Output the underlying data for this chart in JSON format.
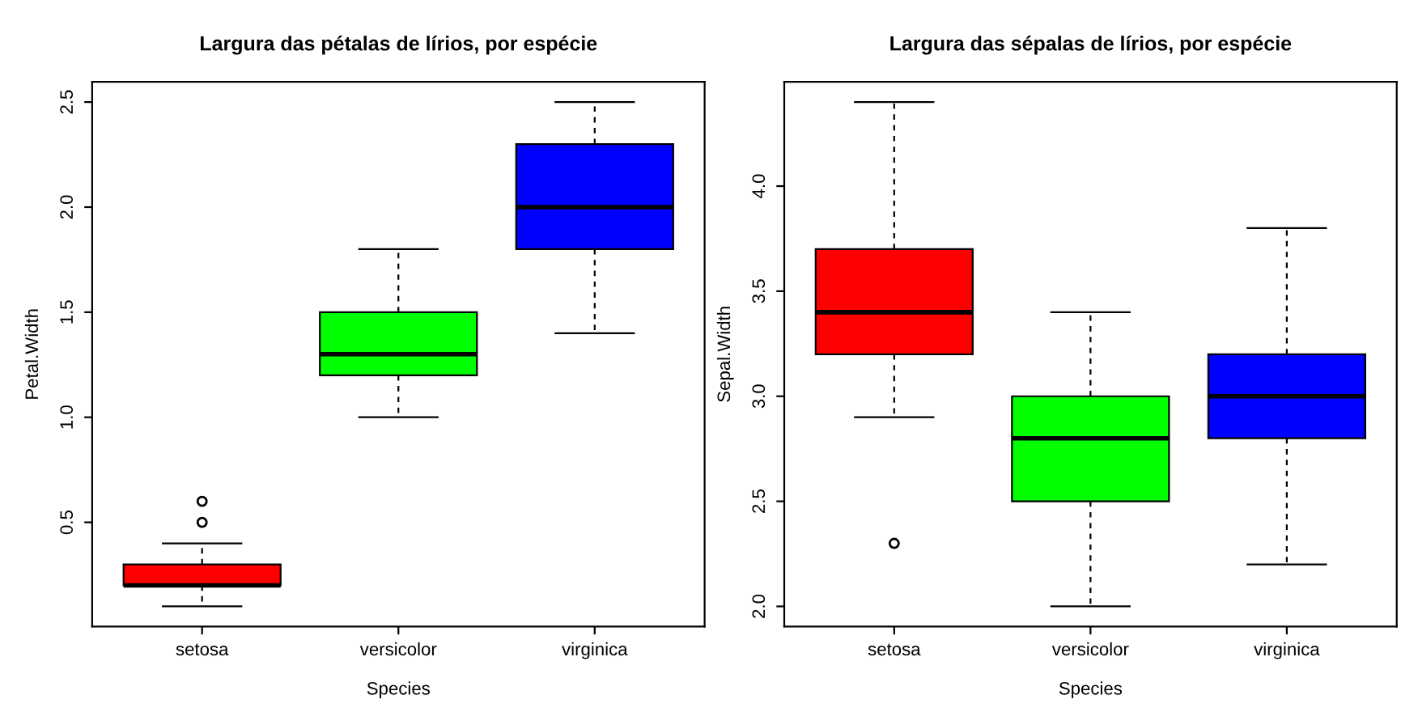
{
  "chart_data": [
    {
      "type": "box",
      "title": "Largura das pétalas de lírios, por espécie",
      "xlabel": "Species",
      "ylabel": "Petal.Width",
      "categories": [
        "setosa",
        "versicolor",
        "virginica"
      ],
      "colors": [
        "#ff0000",
        "#00ff00",
        "#0000ff"
      ],
      "ylim": [
        0.004,
        2.596
      ],
      "yticks": [
        0.5,
        {
          "value": 1,
          "label": "1.0"
        },
        1.5,
        {
          "value": 2,
          "label": "2.0"
        },
        2.5
      ],
      "grid": false,
      "legend": false,
      "boxes": [
        {
          "low": 0.1,
          "q1": 0.2,
          "median": 0.2,
          "q3": 0.3,
          "high": 0.4,
          "outliers": [
            0.5,
            0.6
          ]
        },
        {
          "low": 1.0,
          "q1": 1.2,
          "median": 1.3,
          "q3": 1.5,
          "high": 1.8
        },
        {
          "low": 1.4,
          "q1": 1.8,
          "median": 2.0,
          "q3": 2.3,
          "high": 2.5
        }
      ]
    },
    {
      "type": "box",
      "title": "Largura das sépalas de lírios, por espécie",
      "xlabel": "Species",
      "ylabel": "Sepal.Width",
      "categories": [
        "setosa",
        "versicolor",
        "virginica"
      ],
      "colors": [
        "#ff0000",
        "#00ff00",
        "#0000ff"
      ],
      "ylim": [
        1.904,
        4.496
      ],
      "yticks": [
        {
          "value": 2,
          "label": "2.0"
        },
        2.5,
        {
          "value": 3,
          "label": "3.0"
        },
        3.5,
        {
          "value": 4,
          "label": "4.0"
        }
      ],
      "grid": false,
      "legend": false,
      "boxes": [
        {
          "low": 2.9,
          "q1": 3.2,
          "median": 3.4,
          "q3": 3.7,
          "high": 4.4,
          "outliers": [
            2.3
          ]
        },
        {
          "low": 2.0,
          "q1": 2.5,
          "median": 2.8,
          "q3": 3.0,
          "high": 3.4
        },
        {
          "low": 2.2,
          "q1": 2.8,
          "median": 3.0,
          "q3": 3.2,
          "high": 3.8
        }
      ]
    }
  ]
}
